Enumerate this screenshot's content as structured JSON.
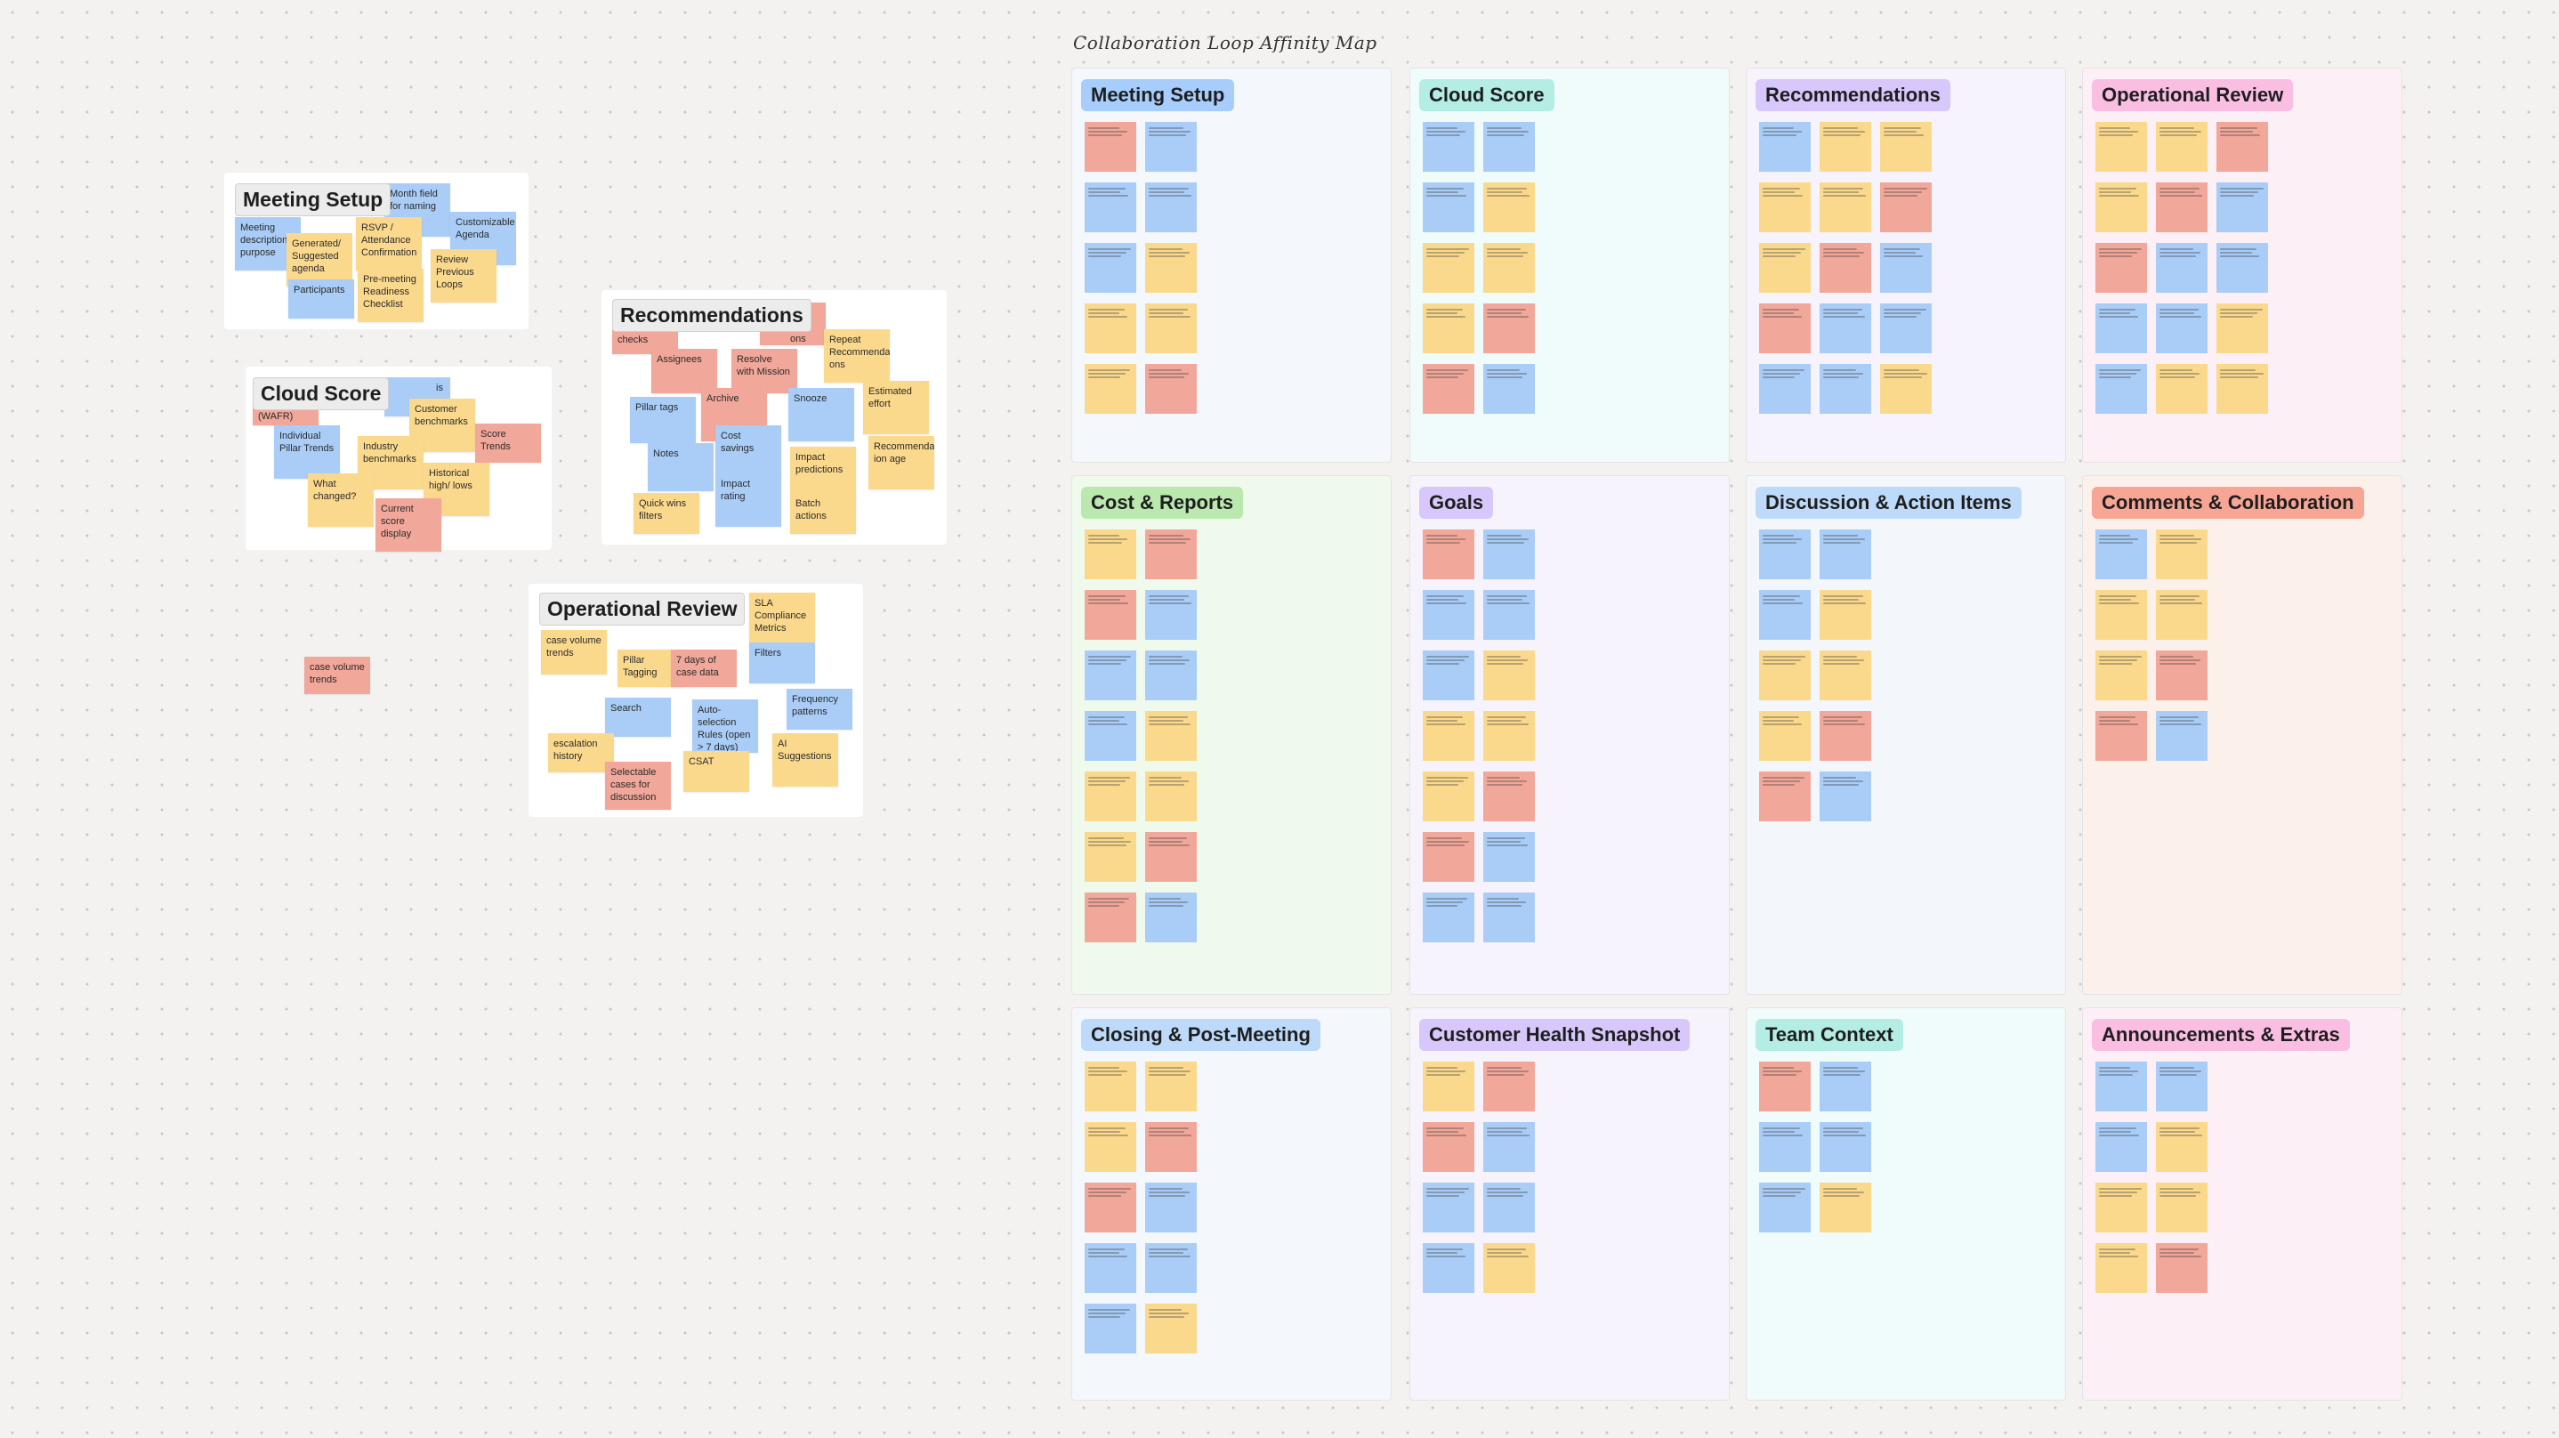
{
  "map_title": "Collaboration Loop Affinity Map",
  "left_clusters": {
    "meeting_setup": {
      "title": "Meeting Setup",
      "notes": [
        "Month field for naming",
        "Customizable Agenda",
        "Meeting description/ purpose",
        "Generated/ Suggested agenda",
        "RSVP / Attendance Confirmation",
        "Review Previous Loops",
        "Participants",
        "Pre-meeting Readiness Checklist"
      ]
    },
    "cloud_score": {
      "title": "Cloud Score",
      "notes": [
        "is",
        "(WAFR)",
        "Customer benchmarks",
        "Individual Pillar Trends",
        "Industry benchmarks",
        "Score Trends",
        "What changed?",
        "Historical high/ lows",
        "Current score display"
      ]
    },
    "recommendations": {
      "title": "Recommendations",
      "notes": [
        "checks",
        "Assignees",
        "Resolve with Mission",
        "(dati ons",
        "Repeat Recommendati ons",
        "Archive",
        "Snooze",
        "Estimated effort",
        "Pillar tags",
        "Cost savings",
        "Notes",
        "Impact predictions",
        "Recommendat ion age",
        "Impact rating",
        "Quick wins filters",
        "Batch actions"
      ]
    },
    "operational_review": {
      "title": "Operational Review",
      "notes": [
        "SLA Compliance Metrics",
        "case volume trends",
        "Pillar Tagging",
        "7 days of case data",
        "Filters",
        "Frequency patterns",
        "Search",
        "Auto-selection Rules (open > 7 days)",
        "AI Suggestions",
        "escalation history",
        "CSAT",
        "Selectable cases for discussion"
      ]
    },
    "loose_note": "case volume trends"
  },
  "panels": [
    {
      "title": "Meeting Setup",
      "accent": "#a9cdf7"
    },
    {
      "title": "Cloud Score",
      "accent": "#b8ece4"
    },
    {
      "title": "Recommendations",
      "accent": "#d6c8f7"
    },
    {
      "title": "Operational Review",
      "accent": "#f6bfe0"
    },
    {
      "title": "Cost & Reports",
      "accent": "#bde7b3"
    },
    {
      "title": "Goals",
      "accent": "#d6c8f7"
    },
    {
      "title": "Discussion & Action Items",
      "accent": "#bfdaf7"
    },
    {
      "title": "Comments & Collaboration",
      "accent": "#f1a799"
    },
    {
      "title": "Closing & Post-Meeting",
      "accent": "#bfdaf7"
    },
    {
      "title": "Customer Health Snapshot",
      "accent": "#d6c8f7"
    },
    {
      "title": "Team Context",
      "accent": "#b8ece4"
    },
    {
      "title": "Announcements & Extras",
      "accent": "#f6bfe0"
    }
  ],
  "colors": {
    "red": "#f1a799",
    "blue": "#a9cdf7",
    "yellow": "#fbd98c"
  }
}
